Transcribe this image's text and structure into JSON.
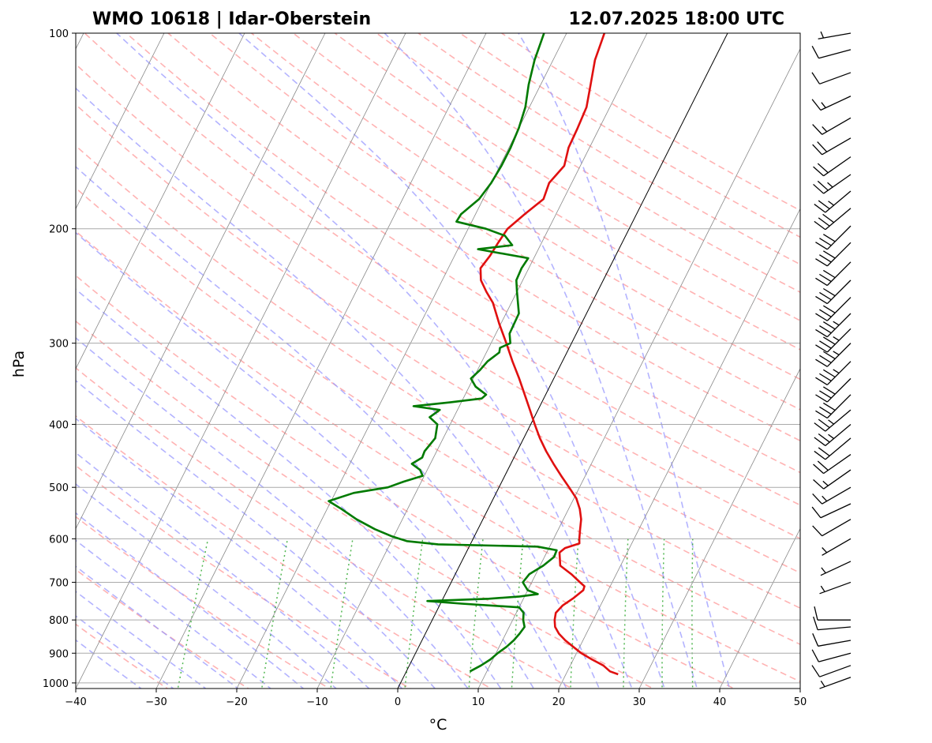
{
  "header": {
    "station": "WMO 10618 | Idar-Oberstein",
    "datetime": "12.07.2025 18:00 UTC"
  },
  "chart_data": {
    "type": "line",
    "chart_kind": "skew-T log-p",
    "xlabel": "°C",
    "ylabel": "hPa",
    "xlim": [
      -40,
      50
    ],
    "ylim": [
      1020,
      100
    ],
    "yscale": "log",
    "x_ticks": [
      -40,
      -30,
      -20,
      -10,
      0,
      10,
      20,
      30,
      40,
      50
    ],
    "x_tick_labels": [
      "−40",
      "−30",
      "−20",
      "−10",
      "0",
      "10",
      "20",
      "30",
      "40",
      "50"
    ],
    "y_ticks": [
      100,
      200,
      300,
      400,
      500,
      600,
      700,
      800,
      900,
      1000
    ],
    "y_tick_labels": [
      "100",
      "200",
      "300",
      "400",
      "500",
      "600",
      "700",
      "800",
      "900",
      "1000"
    ],
    "grid": true,
    "zero_isotherm_highlighted": true,
    "colors": {
      "temperature": "#e01010",
      "dewpoint": "#007a00",
      "dry_adiabats": "#ff9999",
      "moist_adiabats": "#9999ff",
      "mixing_ratio": "#33aa33",
      "isotherms": "#888888",
      "isobars": "#aaaaaa",
      "zero_isotherm": "#000000",
      "wind_barbs": "#000000"
    },
    "series": [
      {
        "role": "temperature",
        "points": [
          [
            970,
            26.5
          ],
          [
            960,
            25.3
          ],
          [
            940,
            24.1
          ],
          [
            920,
            22.3
          ],
          [
            900,
            20.6
          ],
          [
            880,
            19.2
          ],
          [
            860,
            17.8
          ],
          [
            840,
            16.6
          ],
          [
            820,
            15.7
          ],
          [
            800,
            15.2
          ],
          [
            780,
            14.9
          ],
          [
            760,
            15.3
          ],
          [
            740,
            16.2
          ],
          [
            720,
            16.9
          ],
          [
            710,
            16.8
          ],
          [
            700,
            16.0
          ],
          [
            680,
            14.4
          ],
          [
            660,
            12.5
          ],
          [
            640,
            11.9
          ],
          [
            630,
            11.6
          ],
          [
            620,
            12.0
          ],
          [
            610,
            13.5
          ],
          [
            600,
            13.2
          ],
          [
            580,
            12.7
          ],
          [
            560,
            12.2
          ],
          [
            540,
            11.4
          ],
          [
            520,
            10.3
          ],
          [
            500,
            8.7
          ],
          [
            480,
            7.0
          ],
          [
            460,
            5.3
          ],
          [
            440,
            3.6
          ],
          [
            420,
            2.0
          ],
          [
            400,
            0.5
          ],
          [
            380,
            -1.0
          ],
          [
            360,
            -2.6
          ],
          [
            340,
            -4.3
          ],
          [
            320,
            -6.2
          ],
          [
            300,
            -8.1
          ],
          [
            280,
            -10.2
          ],
          [
            260,
            -12.3
          ],
          [
            250,
            -13.8
          ],
          [
            240,
            -15.2
          ],
          [
            230,
            -16.0
          ],
          [
            220,
            -15.6
          ],
          [
            210,
            -15.4
          ],
          [
            200,
            -15.1
          ],
          [
            190,
            -13.9
          ],
          [
            180,
            -12.5
          ],
          [
            170,
            -12.8
          ],
          [
            160,
            -12.0
          ],
          [
            150,
            -12.6
          ],
          [
            140,
            -12.7
          ],
          [
            130,
            -12.9
          ],
          [
            120,
            -13.8
          ],
          [
            110,
            -14.8
          ],
          [
            100,
            -15.3
          ]
        ]
      },
      {
        "role": "dewpoint",
        "points": [
          [
            960,
            7.9
          ],
          [
            940,
            8.9
          ],
          [
            920,
            9.7
          ],
          [
            900,
            10.2
          ],
          [
            880,
            10.9
          ],
          [
            860,
            11.4
          ],
          [
            840,
            11.7
          ],
          [
            820,
            11.9
          ],
          [
            800,
            11.3
          ],
          [
            780,
            10.9
          ],
          [
            765,
            10.0
          ],
          [
            755,
            2.6
          ],
          [
            748,
            -1.8
          ],
          [
            742,
            5.7
          ],
          [
            736,
            9.4
          ],
          [
            730,
            11.5
          ],
          [
            720,
            10.0
          ],
          [
            700,
            8.9
          ],
          [
            680,
            9.2
          ],
          [
            660,
            10.4
          ],
          [
            640,
            11.2
          ],
          [
            625,
            11.1
          ],
          [
            617,
            8.5
          ],
          [
            612,
            -4.0
          ],
          [
            605,
            -8.1
          ],
          [
            595,
            -10.2
          ],
          [
            580,
            -12.8
          ],
          [
            560,
            -15.7
          ],
          [
            540,
            -18.2
          ],
          [
            525,
            -20.3
          ],
          [
            510,
            -17.7
          ],
          [
            500,
            -13.8
          ],
          [
            490,
            -12.2
          ],
          [
            480,
            -10.2
          ],
          [
            470,
            -10.9
          ],
          [
            460,
            -12.3
          ],
          [
            450,
            -11.4
          ],
          [
            440,
            -11.5
          ],
          [
            420,
            -11.0
          ],
          [
            400,
            -11.6
          ],
          [
            390,
            -13.0
          ],
          [
            380,
            -12.2
          ],
          [
            375,
            -15.7
          ],
          [
            370,
            -11.4
          ],
          [
            365,
            -7.7
          ],
          [
            360,
            -7.4
          ],
          [
            350,
            -9.2
          ],
          [
            340,
            -10.3
          ],
          [
            330,
            -9.7
          ],
          [
            320,
            -9.3
          ],
          [
            310,
            -8.4
          ],
          [
            305,
            -8.6
          ],
          [
            300,
            -7.6
          ],
          [
            290,
            -8.3
          ],
          [
            270,
            -8.4
          ],
          [
            250,
            -10.0
          ],
          [
            240,
            -10.8
          ],
          [
            230,
            -10.9
          ],
          [
            222,
            -10.7
          ],
          [
            215,
            -17.5
          ],
          [
            212,
            -13.5
          ],
          [
            205,
            -15.0
          ],
          [
            200,
            -17.8
          ],
          [
            195,
            -21.9
          ],
          [
            190,
            -21.8
          ],
          [
            180,
            -20.5
          ],
          [
            170,
            -20.0
          ],
          [
            160,
            -19.8
          ],
          [
            150,
            -19.8
          ],
          [
            140,
            -20.0
          ],
          [
            130,
            -20.5
          ],
          [
            120,
            -21.5
          ],
          [
            110,
            -22.3
          ],
          [
            100,
            -22.8
          ]
        ]
      }
    ],
    "wind_barbs": [
      {
        "p": 980,
        "dir": 250,
        "spd": 5
      },
      {
        "p": 940,
        "dir": 250,
        "spd": 10
      },
      {
        "p": 900,
        "dir": 255,
        "spd": 10
      },
      {
        "p": 860,
        "dir": 260,
        "spd": 10
      },
      {
        "p": 820,
        "dir": 265,
        "spd": 10
      },
      {
        "p": 800,
        "dir": 270,
        "spd": 10
      },
      {
        "p": 700,
        "dir": 250,
        "spd": 5
      },
      {
        "p": 650,
        "dir": 245,
        "spd": 5
      },
      {
        "p": 600,
        "dir": 240,
        "spd": 5
      },
      {
        "p": 560,
        "dir": 240,
        "spd": 10
      },
      {
        "p": 530,
        "dir": 245,
        "spd": 10
      },
      {
        "p": 500,
        "dir": 240,
        "spd": 15
      },
      {
        "p": 470,
        "dir": 235,
        "spd": 15
      },
      {
        "p": 445,
        "dir": 235,
        "spd": 20
      },
      {
        "p": 420,
        "dir": 230,
        "spd": 20
      },
      {
        "p": 400,
        "dir": 230,
        "spd": 25
      },
      {
        "p": 380,
        "dir": 230,
        "spd": 25
      },
      {
        "p": 360,
        "dir": 225,
        "spd": 30
      },
      {
        "p": 340,
        "dir": 225,
        "spd": 30
      },
      {
        "p": 320,
        "dir": 225,
        "spd": 35
      },
      {
        "p": 300,
        "dir": 225,
        "spd": 35
      },
      {
        "p": 285,
        "dir": 225,
        "spd": 35
      },
      {
        "p": 270,
        "dir": 225,
        "spd": 35
      },
      {
        "p": 255,
        "dir": 225,
        "spd": 30
      },
      {
        "p": 240,
        "dir": 225,
        "spd": 30
      },
      {
        "p": 225,
        "dir": 225,
        "spd": 30
      },
      {
        "p": 210,
        "dir": 225,
        "spd": 30
      },
      {
        "p": 198,
        "dir": 225,
        "spd": 30
      },
      {
        "p": 186,
        "dir": 230,
        "spd": 30
      },
      {
        "p": 175,
        "dir": 230,
        "spd": 25
      },
      {
        "p": 165,
        "dir": 235,
        "spd": 25
      },
      {
        "p": 155,
        "dir": 235,
        "spd": 20
      },
      {
        "p": 145,
        "dir": 240,
        "spd": 20
      },
      {
        "p": 135,
        "dir": 240,
        "spd": 15
      },
      {
        "p": 125,
        "dir": 245,
        "spd": 15
      },
      {
        "p": 115,
        "dir": 250,
        "spd": 10
      },
      {
        "p": 106,
        "dir": 255,
        "spd": 10
      },
      {
        "p": 100,
        "dir": 260,
        "spd": 5
      }
    ]
  }
}
